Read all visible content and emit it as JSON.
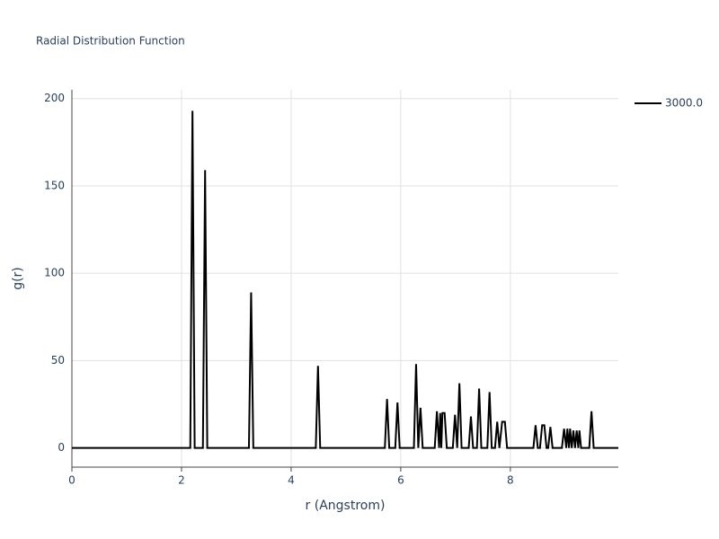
{
  "chart_data": {
    "type": "line",
    "title": "Radial Distribution Function",
    "x_label": "r (Angstrom)",
    "y_label": "g(r)",
    "xlim": [
      0,
      9.97
    ],
    "ylim": [
      -11,
      205
    ],
    "xticks": [
      0,
      2,
      4,
      6,
      8
    ],
    "yticks": [
      0,
      50,
      100,
      150,
      200
    ],
    "grid": true,
    "legend": "right",
    "series": [
      {
        "name": "3000.0",
        "color": "#000000",
        "x": [
          0,
          2.16,
          2.2,
          2.24,
          2.39,
          2.43,
          2.47,
          3.23,
          3.27,
          3.31,
          4.45,
          4.49,
          4.53,
          5.71,
          5.75,
          5.79,
          5.9,
          5.94,
          5.98,
          6.24,
          6.28,
          6.32,
          6.36,
          6.4,
          6.62,
          6.66,
          6.7,
          6.72,
          6.74,
          6.76,
          6.8,
          6.84,
          6.95,
          6.99,
          7.03,
          7.07,
          7.11,
          7.24,
          7.28,
          7.32,
          7.39,
          7.43,
          7.47,
          7.58,
          7.62,
          7.66,
          7.72,
          7.76,
          7.8,
          7.85,
          7.9,
          7.94,
          8.42,
          8.46,
          8.5,
          8.54,
          8.58,
          8.62,
          8.66,
          8.69,
          8.73,
          8.77,
          8.94,
          8.98,
          9.02,
          9.04,
          9.07,
          9.09,
          9.12,
          9.15,
          9.18,
          9.21,
          9.24,
          9.26,
          9.29,
          9.44,
          9.48,
          9.52,
          9.97
        ],
        "values": [
          0,
          0,
          193,
          0,
          0,
          159,
          0,
          0,
          89,
          0,
          0,
          47,
          0,
          0,
          28,
          0,
          0,
          26,
          0,
          0,
          48,
          0,
          23,
          0,
          0,
          21,
          0,
          20,
          0,
          20,
          20,
          0,
          0,
          19,
          0,
          37,
          0,
          0,
          18,
          0,
          0,
          34,
          0,
          0,
          32,
          0,
          0,
          15,
          0,
          15,
          15,
          0,
          0,
          13,
          0,
          0,
          13,
          13,
          0,
          0,
          12,
          0,
          0,
          11,
          0,
          11,
          0,
          11,
          0,
          10,
          0,
          10,
          0,
          10,
          0,
          0,
          21,
          0,
          0
        ]
      }
    ]
  }
}
